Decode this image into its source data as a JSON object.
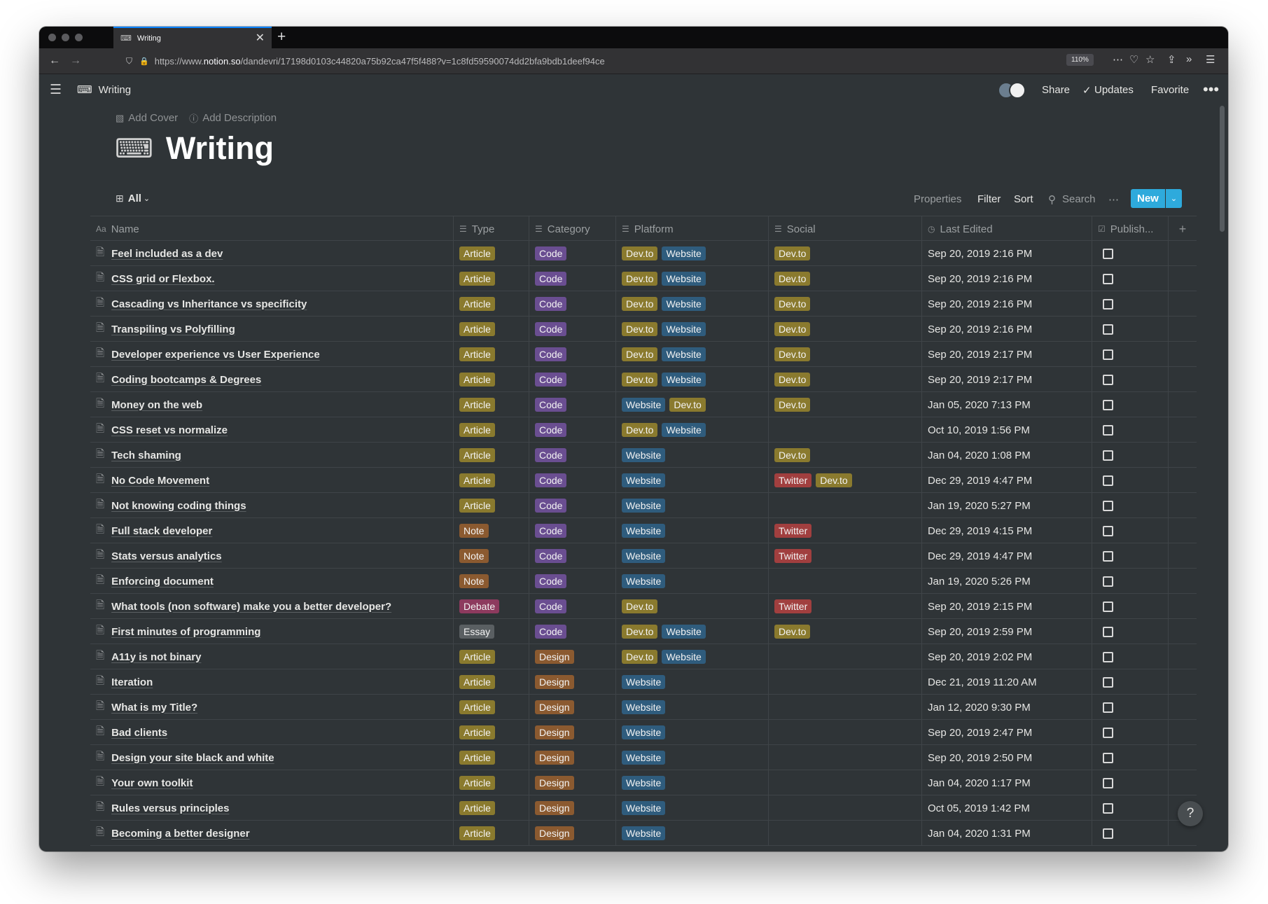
{
  "browser": {
    "tab_title": "Writing",
    "url_prefix": "https://www.",
    "url_domain": "notion.so",
    "url_path": "/dandevri/17198d0103c44820a75b92ca47f5f488?v=1c8fd59590074dd2bfa9bdb1deef94ce",
    "zoom": "110%"
  },
  "topbar": {
    "page_name": "Writing",
    "share": "Share",
    "updates": "Updates",
    "favorite": "Favorite"
  },
  "page": {
    "add_cover": "Add Cover",
    "add_description": "Add Description",
    "title": "Writing",
    "icon": "keyboard-icon"
  },
  "view": {
    "name": "All",
    "properties": "Properties",
    "filter": "Filter",
    "sort": "Sort",
    "search": "Search",
    "new": "New"
  },
  "columns": {
    "name": "Name",
    "type": "Type",
    "category": "Category",
    "platform": "Platform",
    "social": "Social",
    "last_edited": "Last Edited",
    "published": "Publish..."
  },
  "colors": {
    "Article": "#8a7a2e",
    "Note": "#8b5a30",
    "Debate": "#8d3a5e",
    "Essay": "#5a5f62",
    "Code": "#6a4e91",
    "Design": "#8b5a30",
    "Dev.to": "#8a7a2e",
    "Website": "#2f5c7d",
    "Twitter": "#a13f3f"
  },
  "rows": [
    {
      "name": "Feel included as a dev",
      "type": "Article",
      "category": "Code",
      "platform": [
        "Dev.to",
        "Website"
      ],
      "social": [
        "Dev.to"
      ],
      "last_edited": "Sep 20, 2019 2:16 PM"
    },
    {
      "name": "CSS grid or Flexbox.",
      "type": "Article",
      "category": "Code",
      "platform": [
        "Dev.to",
        "Website"
      ],
      "social": [
        "Dev.to"
      ],
      "last_edited": "Sep 20, 2019 2:16 PM"
    },
    {
      "name": "Cascading vs Inheritance vs specificity",
      "type": "Article",
      "category": "Code",
      "platform": [
        "Dev.to",
        "Website"
      ],
      "social": [
        "Dev.to"
      ],
      "last_edited": "Sep 20, 2019 2:16 PM"
    },
    {
      "name": "Transpiling vs Polyfilling",
      "type": "Article",
      "category": "Code",
      "platform": [
        "Dev.to",
        "Website"
      ],
      "social": [
        "Dev.to"
      ],
      "last_edited": "Sep 20, 2019 2:16 PM"
    },
    {
      "name": "Developer experience vs User Experience",
      "type": "Article",
      "category": "Code",
      "platform": [
        "Dev.to",
        "Website"
      ],
      "social": [
        "Dev.to"
      ],
      "last_edited": "Sep 20, 2019 2:17 PM"
    },
    {
      "name": "Coding bootcamps & Degrees",
      "type": "Article",
      "category": "Code",
      "platform": [
        "Dev.to",
        "Website"
      ],
      "social": [
        "Dev.to"
      ],
      "last_edited": "Sep 20, 2019 2:17 PM"
    },
    {
      "name": "Money on the web",
      "type": "Article",
      "category": "Code",
      "platform": [
        "Website",
        "Dev.to"
      ],
      "social": [
        "Dev.to"
      ],
      "last_edited": "Jan 05, 2020 7:13 PM"
    },
    {
      "name": "CSS reset vs normalize",
      "type": "Article",
      "category": "Code",
      "platform": [
        "Dev.to",
        "Website"
      ],
      "social": [],
      "last_edited": "Oct 10, 2019 1:56 PM"
    },
    {
      "name": "Tech shaming",
      "type": "Article",
      "category": "Code",
      "platform": [
        "Website"
      ],
      "social": [
        "Dev.to"
      ],
      "last_edited": "Jan 04, 2020 1:08 PM"
    },
    {
      "name": "No Code Movement",
      "type": "Article",
      "category": "Code",
      "platform": [
        "Website"
      ],
      "social": [
        "Twitter",
        "Dev.to"
      ],
      "last_edited": "Dec 29, 2019 4:47 PM"
    },
    {
      "name": "Not knowing coding things",
      "type": "Article",
      "category": "Code",
      "platform": [
        "Website"
      ],
      "social": [],
      "last_edited": "Jan 19, 2020 5:27 PM"
    },
    {
      "name": "Full stack developer",
      "type": "Note",
      "category": "Code",
      "platform": [
        "Website"
      ],
      "social": [
        "Twitter"
      ],
      "last_edited": "Dec 29, 2019 4:15 PM"
    },
    {
      "name": "Stats versus analytics",
      "type": "Note",
      "category": "Code",
      "platform": [
        "Website"
      ],
      "social": [
        "Twitter"
      ],
      "last_edited": "Dec 29, 2019 4:47 PM"
    },
    {
      "name": "Enforcing document",
      "type": "Note",
      "category": "Code",
      "platform": [
        "Website"
      ],
      "social": [],
      "last_edited": "Jan 19, 2020 5:26 PM"
    },
    {
      "name": "What tools (non software) make you a better developer?",
      "type": "Debate",
      "category": "Code",
      "platform": [
        "Dev.to"
      ],
      "social": [
        "Twitter"
      ],
      "last_edited": "Sep 20, 2019 2:15 PM"
    },
    {
      "name": "First minutes of programming",
      "type": "Essay",
      "category": "Code",
      "platform": [
        "Dev.to",
        "Website"
      ],
      "social": [
        "Dev.to"
      ],
      "last_edited": "Sep 20, 2019 2:59 PM"
    },
    {
      "name": "A11y is not binary",
      "type": "Article",
      "category": "Design",
      "platform": [
        "Dev.to",
        "Website"
      ],
      "social": [],
      "last_edited": "Sep 20, 2019 2:02 PM"
    },
    {
      "name": "Iteration",
      "type": "Article",
      "category": "Design",
      "platform": [
        "Website"
      ],
      "social": [],
      "last_edited": "Dec 21, 2019 11:20 AM"
    },
    {
      "name": "What is my Title?",
      "type": "Article",
      "category": "Design",
      "platform": [
        "Website"
      ],
      "social": [],
      "last_edited": "Jan 12, 2020 9:30 PM"
    },
    {
      "name": "Bad clients",
      "type": "Article",
      "category": "Design",
      "platform": [
        "Website"
      ],
      "social": [],
      "last_edited": "Sep 20, 2019 2:47 PM"
    },
    {
      "name": "Design your site black and white",
      "type": "Article",
      "category": "Design",
      "platform": [
        "Website"
      ],
      "social": [],
      "last_edited": "Sep 20, 2019 2:50 PM"
    },
    {
      "name": "Your own toolkit",
      "type": "Article",
      "category": "Design",
      "platform": [
        "Website"
      ],
      "social": [],
      "last_edited": "Jan 04, 2020 1:17 PM"
    },
    {
      "name": "Rules versus principles",
      "type": "Article",
      "category": "Design",
      "platform": [
        "Website"
      ],
      "social": [],
      "last_edited": "Oct 05, 2019 1:42 PM"
    },
    {
      "name": "Becoming a better designer",
      "type": "Article",
      "category": "Design",
      "platform": [
        "Website"
      ],
      "social": [],
      "last_edited": "Jan 04, 2020 1:31 PM"
    }
  ]
}
